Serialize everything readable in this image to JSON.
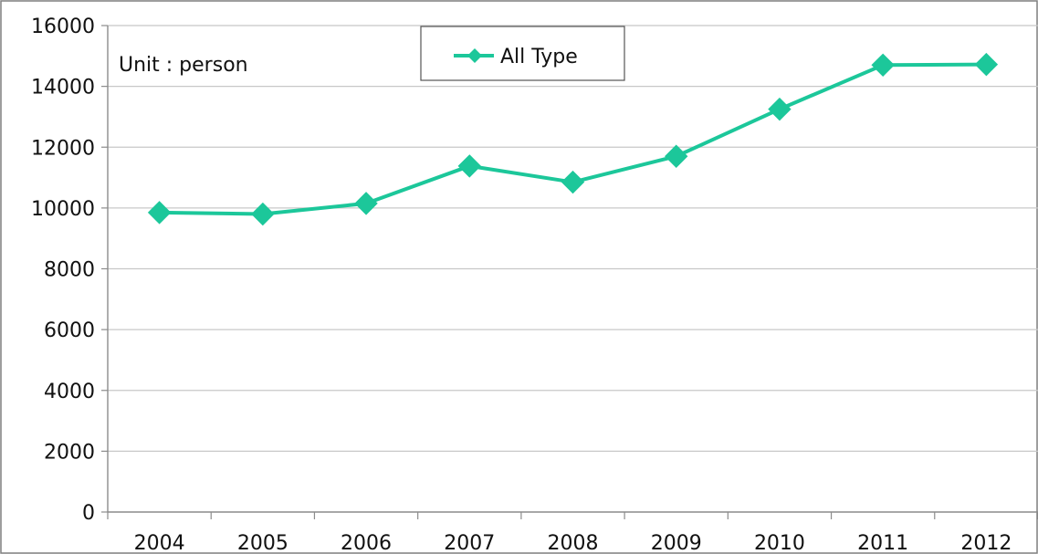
{
  "chart_data": {
    "type": "line",
    "title": "",
    "annotation": "Unit : person",
    "xlabel": "",
    "ylabel": "",
    "categories": [
      "2004",
      "2005",
      "2006",
      "2007",
      "2008",
      "2009",
      "2010",
      "2011",
      "2012"
    ],
    "series": [
      {
        "name": "All Type",
        "values": [
          9850,
          9800,
          10150,
          11380,
          10850,
          11700,
          13250,
          14700,
          14720
        ],
        "color": "#1cc79a",
        "marker": "diamond"
      }
    ],
    "ylim": [
      0,
      16000
    ],
    "yticks": [
      "0",
      "2000",
      "4000",
      "6000",
      "8000",
      "10000",
      "12000",
      "14000",
      "16000"
    ],
    "grid": true,
    "legend_position": "top-center",
    "colors": {
      "gridline": "#c8c8c8",
      "axis": "#8c8c8c",
      "frame": "#7f7f7f"
    }
  }
}
